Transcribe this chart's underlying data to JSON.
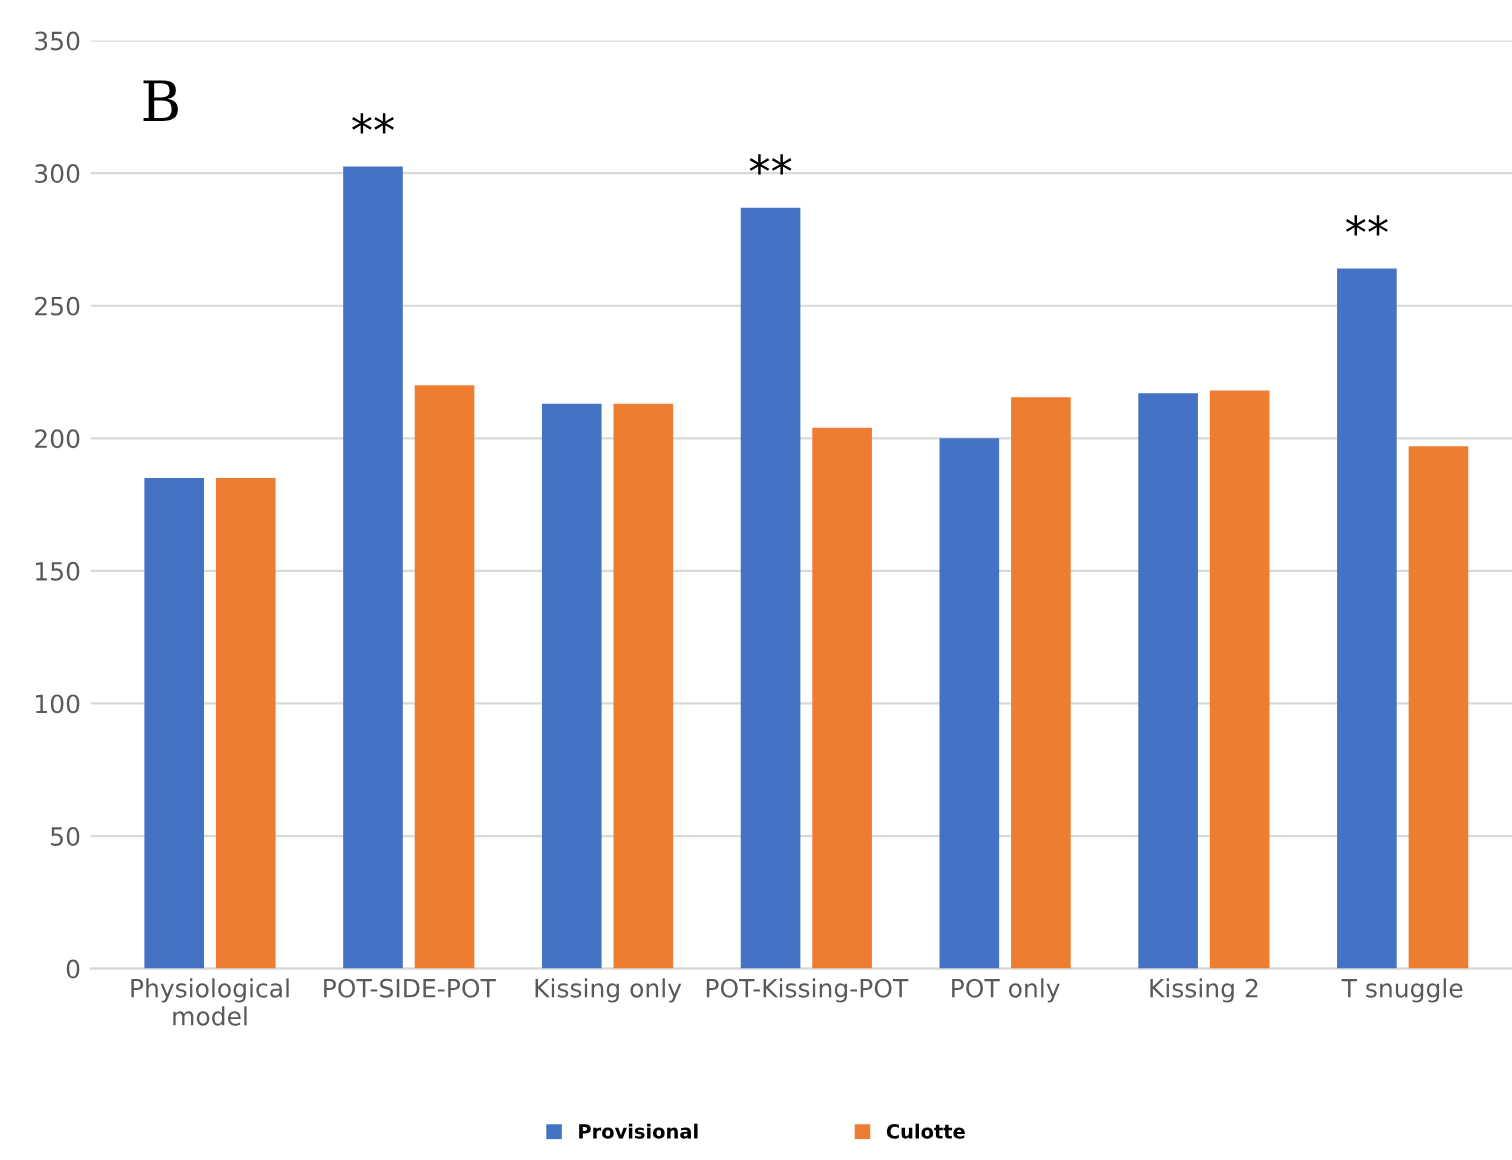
{
  "chart_data": {
    "type": "bar",
    "categories": [
      "Physiological\nmodel",
      "POT-SIDE-POT",
      "Kissing only",
      "POT-Kissing-POT",
      "POT only",
      "Kissing 2",
      "T snuggle"
    ],
    "series": [
      {
        "name": "Provisional",
        "color": "#4472c4",
        "values": [
          185,
          302.5,
          213,
          287,
          200,
          217,
          264
        ]
      },
      {
        "name": "Culotte",
        "color": "#ed7d31",
        "values": [
          185,
          220,
          213,
          204,
          215.5,
          218,
          197
        ]
      }
    ],
    "ylim": [
      0,
      350
    ],
    "yticks": [
      0,
      50,
      100,
      150,
      200,
      250,
      300,
      350
    ],
    "grid": "y",
    "legend": "bottom",
    "annotations": [
      "B",
      {
        "text": "**",
        "x": "POT-SIDE-POT",
        "y": 302.5
      },
      {
        "text": "**",
        "x": "POT-Kissing-POT",
        "y": 287
      },
      {
        "text": "**",
        "x": "T snuggle",
        "y": 264
      }
    ]
  }
}
